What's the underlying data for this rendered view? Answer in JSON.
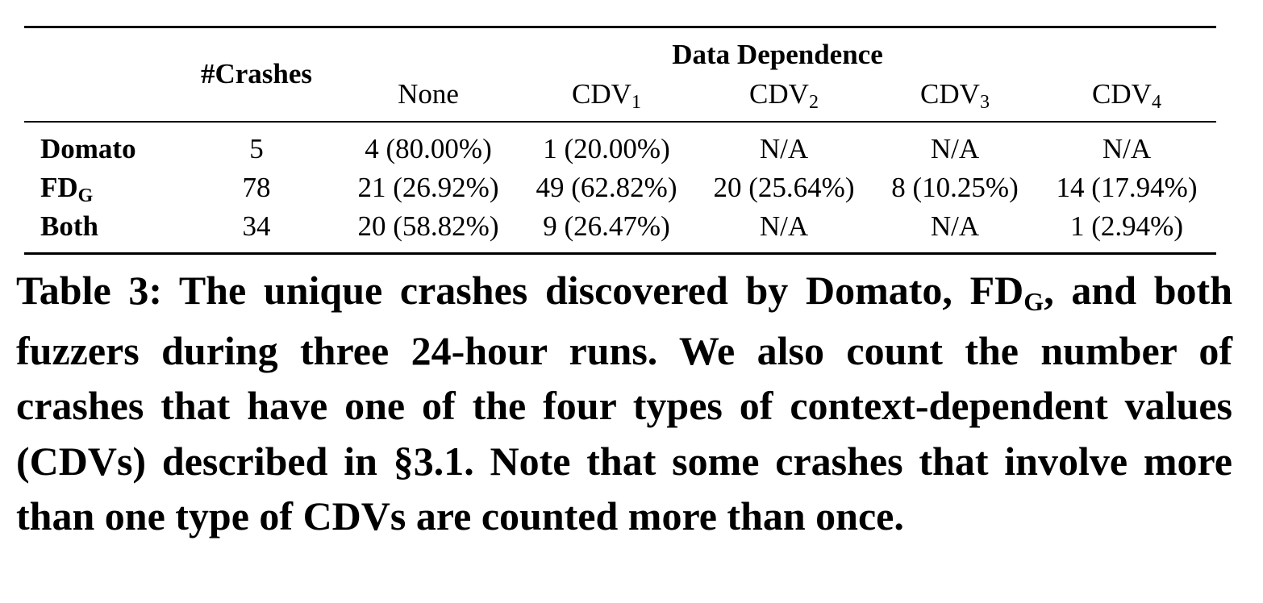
{
  "table": {
    "header": {
      "crashes": "#Crashes",
      "group": "Data Dependence",
      "columns": [
        {
          "base": "None",
          "sub": ""
        },
        {
          "base": "CDV",
          "sub": "1"
        },
        {
          "base": "CDV",
          "sub": "2"
        },
        {
          "base": "CDV",
          "sub": "3"
        },
        {
          "base": "CDV",
          "sub": "4"
        }
      ]
    },
    "rows": [
      {
        "name": "Domato",
        "name_sub": "",
        "crashes": "5",
        "values": [
          "4 (80.00%)",
          "1 (20.00%)",
          "N/A",
          "N/A",
          "N/A"
        ]
      },
      {
        "name": "FD",
        "name_sub": "G",
        "crashes": "78",
        "values": [
          "21 (26.92%)",
          "49 (62.82%)",
          "20 (25.64%)",
          "8 (10.25%)",
          "14 (17.94%)"
        ]
      },
      {
        "name": "Both",
        "name_sub": "",
        "crashes": "34",
        "values": [
          "20 (58.82%)",
          "9 (26.47%)",
          "N/A",
          "N/A",
          "1 (2.94%)"
        ]
      }
    ]
  },
  "caption": {
    "part1": "Table 3: The unique crashes discovered by Domato, FD",
    "sub": "G",
    "part2": ", and both fuzzers during three 24-hour runs. We also count the number of crashes that have one of the four types of context-dependent values (CDVs) described in §3.1. Note that some crashes that involve more than one type of CDVs are counted more than once."
  }
}
